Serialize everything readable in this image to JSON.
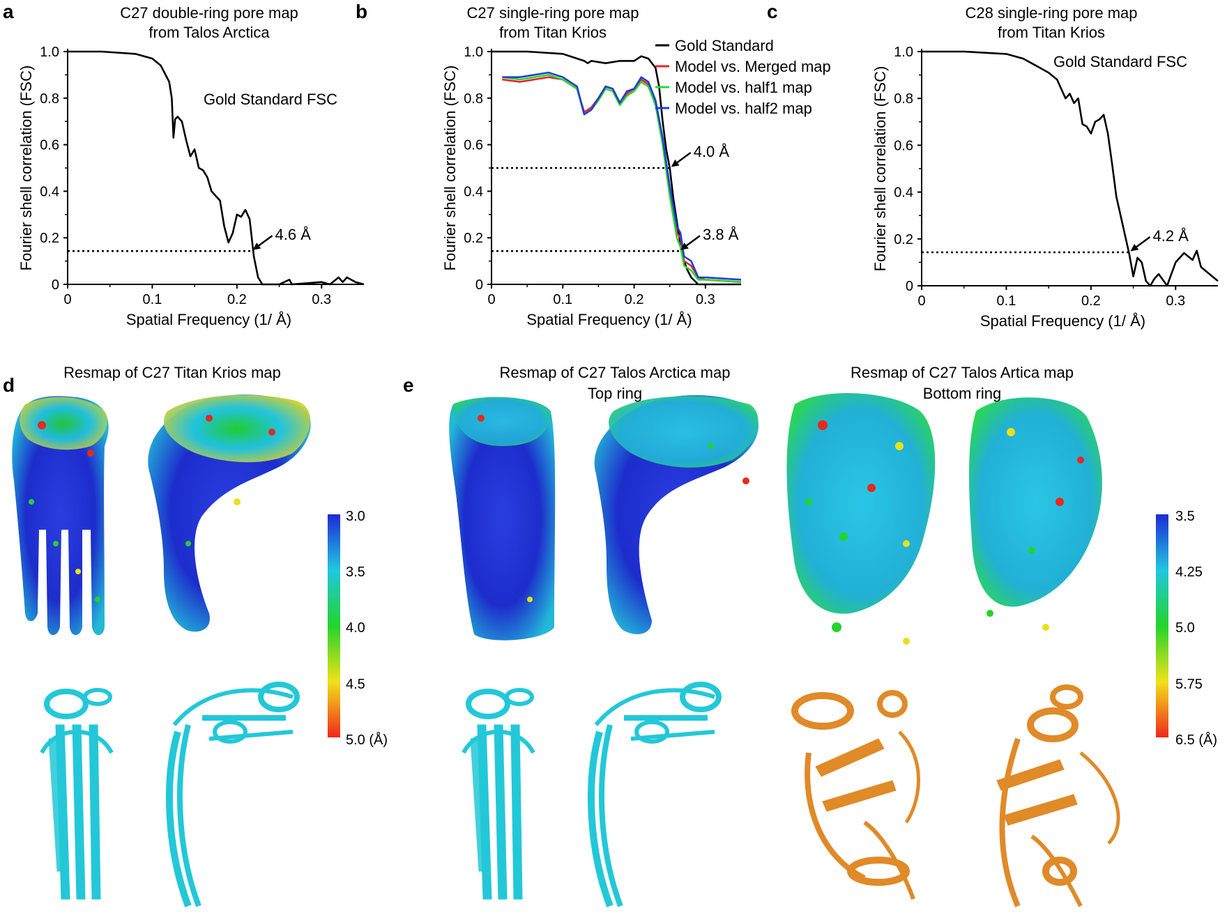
{
  "panels": {
    "a": {
      "label": "a"
    },
    "b": {
      "label": "b"
    },
    "c": {
      "label": "c"
    },
    "d": {
      "label": "d",
      "title": "Resmap of C27 Titan Krios map"
    },
    "e": {
      "label": "e",
      "title_left_1": "Resmap of C27 Talos Arctica map",
      "title_left_2": "Top ring",
      "title_right_1": "Resmap of C27 Talos Artica map",
      "title_right_2": "Bottom ring"
    }
  },
  "colorbar_d": {
    "ticks": [
      "3.0",
      "3.5",
      "4.0",
      "4.5",
      "5.0 (Å)"
    ],
    "colors": [
      "#1e2ad6",
      "#20c8e0",
      "#22d42a",
      "#f0e21a",
      "#f0281a"
    ]
  },
  "colorbar_e": {
    "ticks": [
      "3.5",
      "4.25",
      "5.0",
      "5.75",
      "6.5 (Å)"
    ],
    "colors": [
      "#1e2ad6",
      "#20c8e0",
      "#22d42a",
      "#f0e21a",
      "#f0281a"
    ]
  },
  "chart_data": [
    {
      "type": "line",
      "title": "C27 double-ring pore map",
      "subtitle": "from Talos Arctica",
      "xlabel": "Spatial Frequency (1/ Å)",
      "ylabel": "Fourier shell correlation (FSC)",
      "xlim": [
        0,
        0.35
      ],
      "ylim": [
        0,
        1.0
      ],
      "xticks": [
        "0",
        "0.1",
        "0.2",
        "0.3"
      ],
      "yticks": [
        "0",
        "0.2",
        "0.4",
        "0.6",
        "0.8",
        "1.0"
      ],
      "annotations": [
        {
          "text": "Gold Standard FSC"
        },
        {
          "text": "4.6 Å",
          "x": 0.217,
          "y": 0.143
        }
      ],
      "threshold_lines": [
        {
          "y": 0.143,
          "x_start": 0.0,
          "x_end": 0.217
        }
      ],
      "series": [
        {
          "color": "#000000",
          "x": [
            0,
            0.04,
            0.08,
            0.1,
            0.11,
            0.12,
            0.123,
            0.125,
            0.127,
            0.13,
            0.135,
            0.14,
            0.145,
            0.15,
            0.155,
            0.16,
            0.165,
            0.17,
            0.175,
            0.18,
            0.185,
            0.19,
            0.195,
            0.2,
            0.205,
            0.21,
            0.215,
            0.22,
            0.225,
            0.23,
            0.25,
            0.262,
            0.265,
            0.3,
            0.31,
            0.32,
            0.325,
            0.33,
            0.34,
            0.35
          ],
          "y": [
            1.0,
            1.0,
            0.99,
            0.97,
            0.94,
            0.87,
            0.8,
            0.63,
            0.71,
            0.72,
            0.7,
            0.62,
            0.55,
            0.58,
            0.5,
            0.49,
            0.46,
            0.4,
            0.38,
            0.36,
            0.25,
            0.18,
            0.22,
            0.3,
            0.29,
            0.32,
            0.28,
            0.12,
            0.03,
            0.0,
            0.0,
            0.02,
            0.0,
            0.01,
            0.0,
            0.03,
            0.01,
            0.03,
            0.01,
            0.0
          ]
        }
      ]
    },
    {
      "type": "line",
      "title": "C27 single-ring pore map",
      "subtitle": "from Titan Krios",
      "xlabel": "Spatial Frequency (1/ Å)",
      "ylabel": "Fourier shell correlation (FSC)",
      "xlim": [
        0,
        0.35
      ],
      "ylim": [
        0,
        1.0
      ],
      "xticks": [
        "0",
        "0.1",
        "0.2",
        "0.3"
      ],
      "yticks": [
        "0",
        "0.2",
        "0.4",
        "0.6",
        "0.8",
        "1.0"
      ],
      "legend_position": "top-right",
      "annotations": [
        {
          "text": "4.0 Å",
          "x": 0.25,
          "y": 0.5
        },
        {
          "text": "3.8 Å",
          "x": 0.263,
          "y": 0.143
        }
      ],
      "threshold_lines": [
        {
          "y": 0.5,
          "x_start": 0.0,
          "x_end": 0.25
        },
        {
          "y": 0.143,
          "x_start": 0.0,
          "x_end": 0.263
        }
      ],
      "series": [
        {
          "name": "Gold Standard",
          "color": "#000000",
          "x": [
            0,
            0.05,
            0.1,
            0.12,
            0.13,
            0.135,
            0.14,
            0.16,
            0.18,
            0.2,
            0.21,
            0.22,
            0.23,
            0.235,
            0.24,
            0.245,
            0.25,
            0.255,
            0.26,
            0.265,
            0.27,
            0.275,
            0.28,
            0.29,
            0.3,
            0.35
          ],
          "y": [
            1.0,
            1.0,
            0.99,
            0.97,
            0.96,
            0.95,
            0.96,
            0.95,
            0.96,
            0.96,
            0.98,
            0.97,
            0.93,
            0.85,
            0.7,
            0.58,
            0.5,
            0.37,
            0.27,
            0.17,
            0.1,
            0.06,
            0.03,
            0.0,
            0.0,
            0.0
          ]
        },
        {
          "name": "Model vs. Merged map",
          "color": "#e8242a",
          "x": [
            0.015,
            0.04,
            0.06,
            0.08,
            0.1,
            0.12,
            0.13,
            0.14,
            0.15,
            0.16,
            0.17,
            0.18,
            0.19,
            0.2,
            0.21,
            0.22,
            0.23,
            0.24,
            0.25,
            0.26,
            0.265,
            0.27,
            0.28,
            0.29,
            0.3,
            0.35
          ],
          "y": [
            0.88,
            0.87,
            0.88,
            0.89,
            0.88,
            0.84,
            0.74,
            0.76,
            0.8,
            0.85,
            0.84,
            0.78,
            0.82,
            0.84,
            0.88,
            0.86,
            0.78,
            0.62,
            0.4,
            0.22,
            0.2,
            0.1,
            0.08,
            0.03,
            0.02,
            0.01
          ]
        },
        {
          "name": "Model vs. half1 map",
          "color": "#2fd42f",
          "x": [
            0.015,
            0.04,
            0.06,
            0.08,
            0.1,
            0.12,
            0.13,
            0.14,
            0.15,
            0.16,
            0.17,
            0.18,
            0.19,
            0.2,
            0.21,
            0.22,
            0.23,
            0.24,
            0.25,
            0.26,
            0.265,
            0.27,
            0.28,
            0.29,
            0.3,
            0.35
          ],
          "y": [
            0.89,
            0.88,
            0.89,
            0.9,
            0.88,
            0.84,
            0.73,
            0.75,
            0.79,
            0.84,
            0.83,
            0.77,
            0.81,
            0.83,
            0.87,
            0.85,
            0.77,
            0.6,
            0.38,
            0.2,
            0.16,
            0.08,
            0.06,
            0.02,
            0.02,
            0.01
          ]
        },
        {
          "name": "Model vs. half2 map",
          "color": "#1f3fd6",
          "x": [
            0.015,
            0.04,
            0.06,
            0.08,
            0.1,
            0.12,
            0.13,
            0.14,
            0.15,
            0.16,
            0.17,
            0.18,
            0.19,
            0.2,
            0.21,
            0.22,
            0.23,
            0.24,
            0.25,
            0.26,
            0.265,
            0.27,
            0.28,
            0.29,
            0.3,
            0.35
          ],
          "y": [
            0.89,
            0.89,
            0.9,
            0.91,
            0.89,
            0.85,
            0.73,
            0.75,
            0.8,
            0.85,
            0.84,
            0.78,
            0.83,
            0.84,
            0.89,
            0.87,
            0.79,
            0.63,
            0.42,
            0.25,
            0.22,
            0.12,
            0.1,
            0.03,
            0.03,
            0.02
          ]
        }
      ]
    },
    {
      "type": "line",
      "title": "C28 single-ring pore map",
      "subtitle": "from Titan Krios",
      "xlabel": "Spatial Frequency (1/ Å)",
      "ylabel": "Fourier shell correlation (FSC)",
      "xlim": [
        0,
        0.35
      ],
      "ylim": [
        0,
        1.0
      ],
      "xticks": [
        "0",
        "0.1",
        "0.2",
        "0.3"
      ],
      "yticks": [
        "0",
        "0.2",
        "0.4",
        "0.6",
        "0.8",
        "1.0"
      ],
      "annotations": [
        {
          "text": "Gold Standard FSC"
        },
        {
          "text": "4.2 Å",
          "x": 0.245,
          "y": 0.143
        }
      ],
      "threshold_lines": [
        {
          "y": 0.143,
          "x_start": 0.0,
          "x_end": 0.245
        }
      ],
      "series": [
        {
          "color": "#000000",
          "x": [
            0,
            0.05,
            0.1,
            0.12,
            0.13,
            0.14,
            0.15,
            0.16,
            0.17,
            0.175,
            0.18,
            0.185,
            0.19,
            0.195,
            0.2,
            0.205,
            0.21,
            0.215,
            0.22,
            0.225,
            0.23,
            0.235,
            0.24,
            0.245,
            0.25,
            0.255,
            0.26,
            0.265,
            0.27,
            0.275,
            0.28,
            0.29,
            0.3,
            0.31,
            0.32,
            0.325,
            0.33,
            0.34,
            0.35
          ],
          "y": [
            1.0,
            1.0,
            0.99,
            0.97,
            0.95,
            0.93,
            0.91,
            0.88,
            0.8,
            0.82,
            0.78,
            0.8,
            0.69,
            0.68,
            0.65,
            0.7,
            0.71,
            0.73,
            0.65,
            0.52,
            0.38,
            0.3,
            0.22,
            0.14,
            0.04,
            0.12,
            0.1,
            0.02,
            0.0,
            0.03,
            0.05,
            0.0,
            0.1,
            0.14,
            0.11,
            0.15,
            0.08,
            0.05,
            0.02
          ]
        }
      ]
    }
  ]
}
